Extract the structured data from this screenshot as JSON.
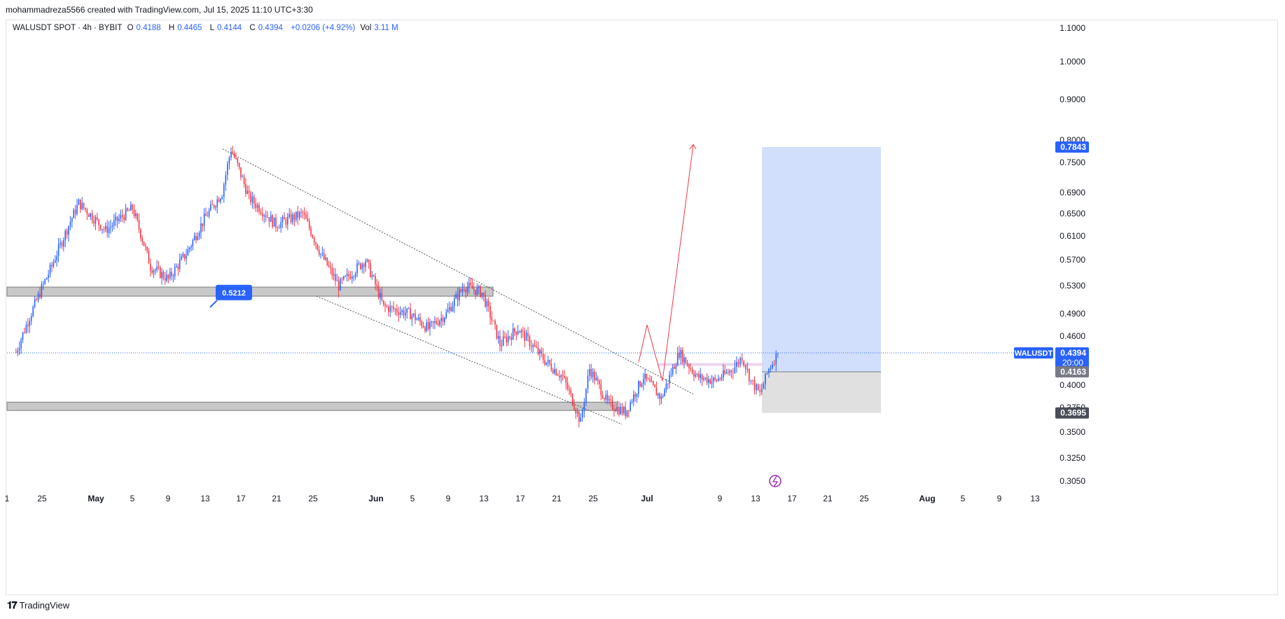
{
  "header": {
    "text": "mohammadreza5566 created with TradingView.com, Jul 15, 2025 11:10 UTC+3:30"
  },
  "legend": {
    "symbol": "WALUSDT SPOT · 4h · BYBIT",
    "o_label": "O",
    "o_value": "0.4188",
    "h_label": "H",
    "h_value": "0.4465",
    "l_label": "L",
    "l_value": "0.4144",
    "c_label": "C",
    "c_value": "0.4394",
    "change": "+0.0206 (+4.92%)",
    "vol_label": "Vol",
    "vol_value": "3.11 M"
  },
  "footer": {
    "logo": "𝟏𝟕",
    "brand": "TradingView"
  },
  "colors": {
    "up": "#2962ff",
    "down": "#f23645",
    "accent": "#2962ff",
    "target_zone": "#c9d9fb",
    "stop_zone": "#e0e0e0"
  },
  "chart_data": {
    "type": "candlestick",
    "symbol": "WALUSDT",
    "timeframe": "4h",
    "exchange": "BYBIT",
    "price_axis": {
      "ticks": [
        "1.1000",
        "1.0000",
        "0.9000",
        "0.8000",
        "0.7500",
        "0.6900",
        "0.6500",
        "0.6100",
        "0.5700",
        "0.5300",
        "0.4900",
        "0.4600",
        "0.4000",
        "0.3750",
        "0.3500",
        "0.3250",
        "0.3050"
      ],
      "values": [
        1.1,
        1.0,
        0.9,
        0.8,
        0.75,
        0.69,
        0.65,
        0.61,
        0.57,
        0.53,
        0.49,
        0.46,
        0.4,
        0.375,
        0.35,
        0.325,
        0.305
      ]
    },
    "time_axis": {
      "labels": [
        "1",
        "25",
        "May",
        "5",
        "9",
        "13",
        "17",
        "21",
        "25",
        "Jun",
        "5",
        "9",
        "13",
        "17",
        "21",
        "25",
        "Jul",
        "9",
        "13",
        "17",
        "21",
        "25",
        "Aug",
        "5",
        "9",
        "13"
      ]
    },
    "price_labels": {
      "symbol_tag": "WALUSDT",
      "last_price": "0.4394",
      "countdown": "20:00",
      "target": "0.7843",
      "entry": "0.4163",
      "stop": "0.3695"
    },
    "last_price": 0.4394,
    "annotations": {
      "callout": "0.5212",
      "resistance_zone": [
        0.515,
        0.528
      ],
      "support_zone": [
        0.372,
        0.381
      ],
      "position": {
        "target": 0.7843,
        "entry": 0.4163,
        "stop": 0.3695
      }
    },
    "trend_samples": [
      {
        "date": "Apr 21",
        "price": 0.44
      },
      {
        "date": "Apr 25",
        "price": 0.56
      },
      {
        "date": "Apr 28",
        "price": 0.67
      },
      {
        "date": "May 1",
        "price": 0.62
      },
      {
        "date": "May 4",
        "price": 0.66
      },
      {
        "date": "May 6",
        "price": 0.56
      },
      {
        "date": "May 8",
        "price": 0.54
      },
      {
        "date": "May 10",
        "price": 0.58
      },
      {
        "date": "May 12",
        "price": 0.64
      },
      {
        "date": "May 14",
        "price": 0.69
      },
      {
        "date": "May 15",
        "price": 0.78
      },
      {
        "date": "May 17",
        "price": 0.68
      },
      {
        "date": "May 20",
        "price": 0.63
      },
      {
        "date": "May 23",
        "price": 0.65
      },
      {
        "date": "May 25",
        "price": 0.58
      },
      {
        "date": "May 27",
        "price": 0.53
      },
      {
        "date": "May 30",
        "price": 0.57
      },
      {
        "date": "Jun 1",
        "price": 0.5
      },
      {
        "date": "Jun 4",
        "price": 0.49
      },
      {
        "date": "Jun 6",
        "price": 0.47
      },
      {
        "date": "Jun 8",
        "price": 0.49
      },
      {
        "date": "Jun 10",
        "price": 0.53
      },
      {
        "date": "Jun 12",
        "price": 0.52
      },
      {
        "date": "Jun 14",
        "price": 0.45
      },
      {
        "date": "Jun 16",
        "price": 0.47
      },
      {
        "date": "Jun 19",
        "price": 0.43
      },
      {
        "date": "Jun 21",
        "price": 0.41
      },
      {
        "date": "Jun 23",
        "price": 0.36
      },
      {
        "date": "Jun 24",
        "price": 0.42
      },
      {
        "date": "Jun 26",
        "price": 0.38
      },
      {
        "date": "Jun 28",
        "price": 0.37
      },
      {
        "date": "Jun 30",
        "price": 0.41
      },
      {
        "date": "Jul 2",
        "price": 0.385
      },
      {
        "date": "Jul 4",
        "price": 0.44
      },
      {
        "date": "Jul 6",
        "price": 0.41
      },
      {
        "date": "Jul 8",
        "price": 0.405
      },
      {
        "date": "Jul 10",
        "price": 0.42
      },
      {
        "date": "Jul 11",
        "price": 0.435
      },
      {
        "date": "Jul 12",
        "price": 0.405
      },
      {
        "date": "Jul 13",
        "price": 0.39
      },
      {
        "date": "Jul 14",
        "price": 0.42
      },
      {
        "date": "Jul 15",
        "price": 0.4394
      }
    ]
  }
}
